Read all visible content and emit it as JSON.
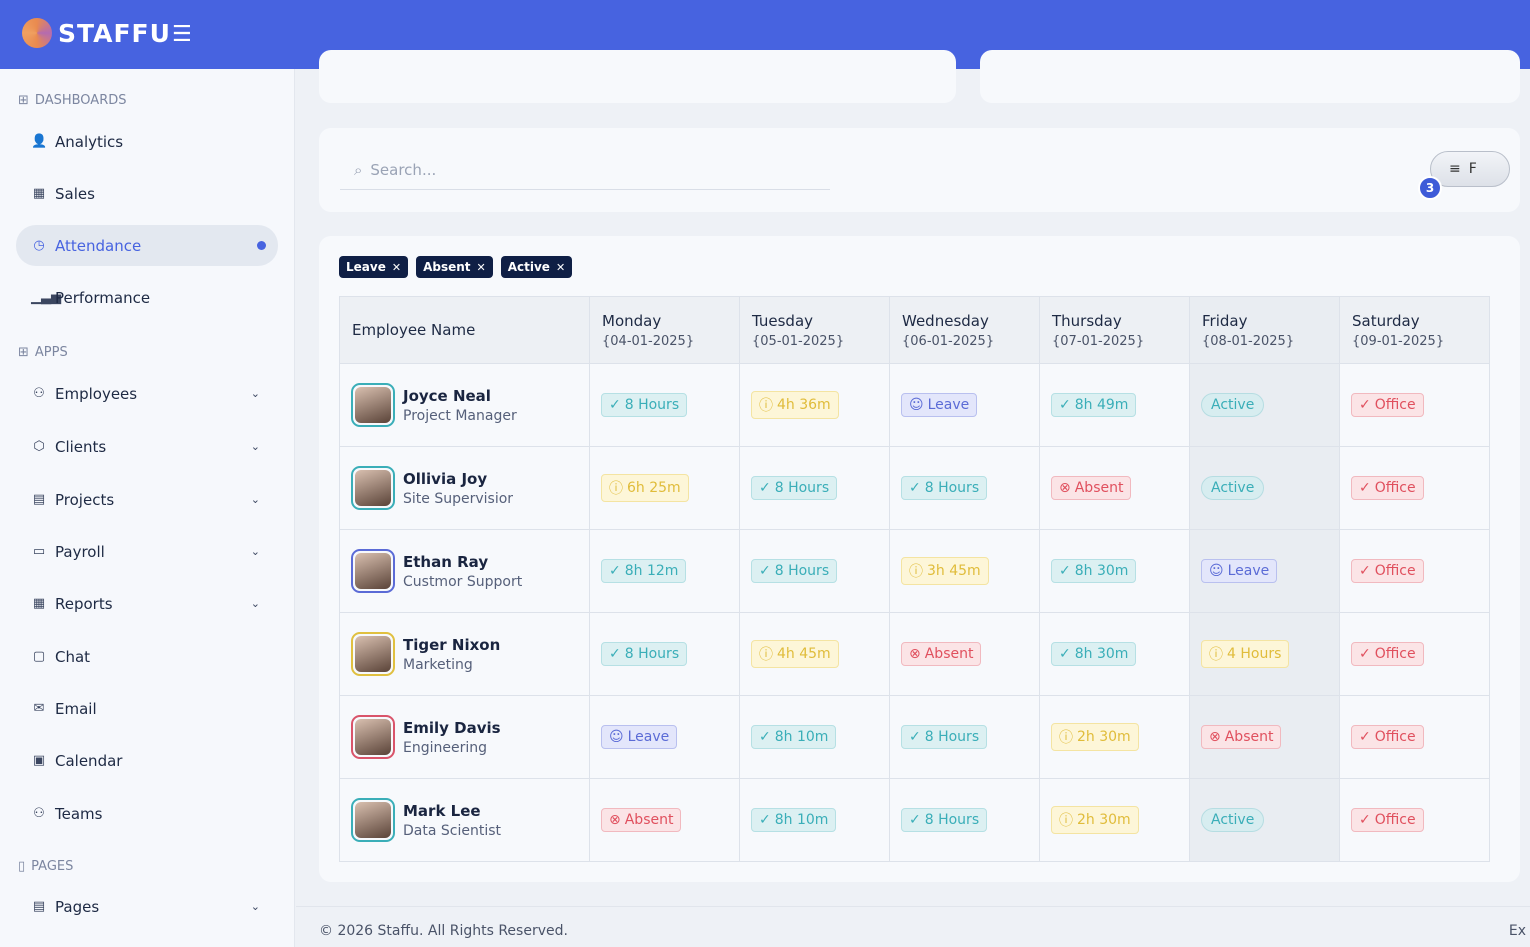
{
  "brand": {
    "name": "STAFFU"
  },
  "sidebar": {
    "sections": [
      {
        "label": "DASHBOARDS"
      },
      {
        "label": "APPS"
      },
      {
        "label": "PAGES"
      }
    ],
    "items": [
      {
        "label": "Analytics",
        "icon": "user-list-icon"
      },
      {
        "label": "Sales",
        "icon": "report-icon"
      },
      {
        "label": "Attendance",
        "icon": "clock-icon",
        "active": true
      },
      {
        "label": "Performance",
        "icon": "bar-chart-icon"
      },
      {
        "label": "Employees",
        "icon": "users-icon",
        "expandable": true
      },
      {
        "label": "Clients",
        "icon": "handshake-icon",
        "expandable": true
      },
      {
        "label": "Projects",
        "icon": "project-icon",
        "expandable": true
      },
      {
        "label": "Payroll",
        "icon": "wallet-icon",
        "expandable": true
      },
      {
        "label": "Reports",
        "icon": "report-icon",
        "expandable": true
      },
      {
        "label": "Chat",
        "icon": "chat-icon"
      },
      {
        "label": "Email",
        "icon": "mail-icon"
      },
      {
        "label": "Calendar",
        "icon": "calendar-icon"
      },
      {
        "label": "Teams",
        "icon": "teams-icon"
      },
      {
        "label": "Pages",
        "icon": "page-icon",
        "expandable": true
      }
    ]
  },
  "search": {
    "placeholder": "Search..."
  },
  "filter": {
    "label": "F",
    "count": "3"
  },
  "chips": [
    "Leave",
    "Absent",
    "Active"
  ],
  "table": {
    "name_header": "Employee Name",
    "days": [
      {
        "day": "Monday",
        "date": "{04-01-2025}"
      },
      {
        "day": "Tuesday",
        "date": "{05-01-2025}"
      },
      {
        "day": "Wednesday",
        "date": "{06-01-2025}"
      },
      {
        "day": "Thursday",
        "date": "{07-01-2025}"
      },
      {
        "day": "Friday",
        "date": "{08-01-2025}"
      },
      {
        "day": "Saturday",
        "date": "{09-01-2025}"
      }
    ],
    "rows": [
      {
        "name": "Joyce Neal",
        "role": "Project Manager",
        "ring": "#3aaeb8",
        "cells": [
          [
            "hours",
            "8 Hours"
          ],
          [
            "part",
            "4h 36m"
          ],
          [
            "leave",
            "Leave"
          ],
          [
            "hours",
            "8h 49m"
          ],
          [
            "active",
            "Active"
          ],
          [
            "office",
            "Office"
          ]
        ]
      },
      {
        "name": "Ollivia Joy",
        "role": "Site Supervisior",
        "ring": "#3aaeb8",
        "cells": [
          [
            "part",
            "6h 25m"
          ],
          [
            "hours",
            "8 Hours"
          ],
          [
            "hours",
            "8 Hours"
          ],
          [
            "absent",
            "Absent"
          ],
          [
            "active",
            "Active"
          ],
          [
            "office",
            "Office"
          ]
        ]
      },
      {
        "name": "Ethan Ray",
        "role": "Custmor Support",
        "ring": "#5b6bd6",
        "cells": [
          [
            "hours",
            "8h 12m"
          ],
          [
            "hours",
            "8 Hours"
          ],
          [
            "part",
            "3h 45m"
          ],
          [
            "hours",
            "8h 30m"
          ],
          [
            "leave",
            "Leave"
          ],
          [
            "office",
            "Office"
          ]
        ]
      },
      {
        "name": "Tiger Nixon",
        "role": "Marketing",
        "ring": "#e0c040",
        "cells": [
          [
            "hours",
            "8 Hours"
          ],
          [
            "part",
            "4h 45m"
          ],
          [
            "absent",
            "Absent"
          ],
          [
            "hours",
            "8h 30m"
          ],
          [
            "part",
            "4 Hours"
          ],
          [
            "office",
            "Office"
          ]
        ]
      },
      {
        "name": "Emily Davis",
        "role": "Engineering",
        "ring": "#d9546a",
        "cells": [
          [
            "leave",
            "Leave"
          ],
          [
            "hours",
            "8h 10m"
          ],
          [
            "hours",
            "8 Hours"
          ],
          [
            "part",
            "2h 30m"
          ],
          [
            "absent",
            "Absent"
          ],
          [
            "office",
            "Office"
          ]
        ]
      },
      {
        "name": "Mark Lee",
        "role": "Data Scientist",
        "ring": "#3aaeb8",
        "cells": [
          [
            "absent",
            "Absent"
          ],
          [
            "hours",
            "8h 10m"
          ],
          [
            "hours",
            "8 Hours"
          ],
          [
            "part",
            "2h 30m"
          ],
          [
            "active",
            "Active"
          ],
          [
            "office",
            "Office"
          ]
        ]
      }
    ]
  },
  "footer": {
    "copyright": "© 2026 Staffu. All Rights Reserved.",
    "right": "Ex"
  }
}
